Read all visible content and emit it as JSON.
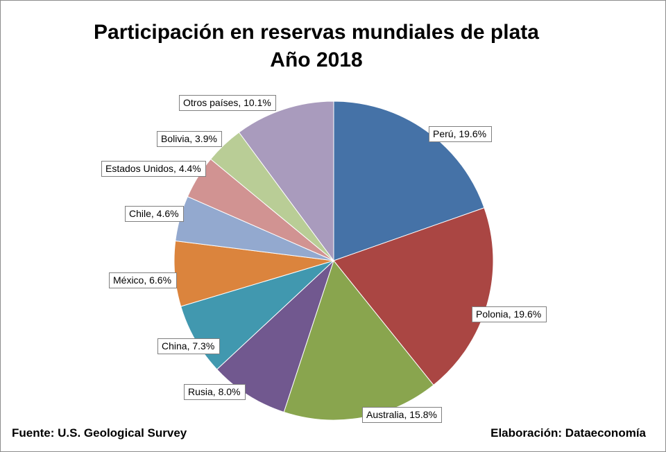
{
  "chart_data": {
    "type": "pie",
    "title_line1": "Participación en reservas mundiales de plata",
    "title_line2": "Año 2018",
    "slices": [
      {
        "label": "Perú, 19.6%",
        "name": "Perú",
        "value": 19.6,
        "color": "#4572A7"
      },
      {
        "label": "Polonia, 19.6%",
        "name": "Polonia",
        "value": 19.6,
        "color": "#AA4643"
      },
      {
        "label": "Australia, 15.8%",
        "name": "Australia",
        "value": 15.8,
        "color": "#89A54E"
      },
      {
        "label": "Rusia, 8.0%",
        "name": "Rusia",
        "value": 8.0,
        "color": "#71588F"
      },
      {
        "label": "China, 7.3%",
        "name": "China",
        "value": 7.3,
        "color": "#4198AF"
      },
      {
        "label": "México, 6.6%",
        "name": "México",
        "value": 6.6,
        "color": "#DB843D"
      },
      {
        "label": "Chile, 4.6%",
        "name": "Chile",
        "value": 4.6,
        "color": "#93A9CF"
      },
      {
        "label": "Estados Unidos, 4.4%",
        "name": "Estados Unidos",
        "value": 4.4,
        "color": "#D19392"
      },
      {
        "label": "Bolivia, 3.9%",
        "name": "Bolivia",
        "value": 3.9,
        "color": "#B9CD96"
      },
      {
        "label": "Otros países, 10.1%",
        "name": "Otros países",
        "value": 10.1,
        "color": "#A99BBD"
      }
    ],
    "start_angle": "12 o'clock",
    "direction": "clockwise",
    "legend": "none"
  },
  "footer": {
    "source": "Fuente: U.S. Geological Survey",
    "credit": "Elaboración: Dataeconomía"
  }
}
